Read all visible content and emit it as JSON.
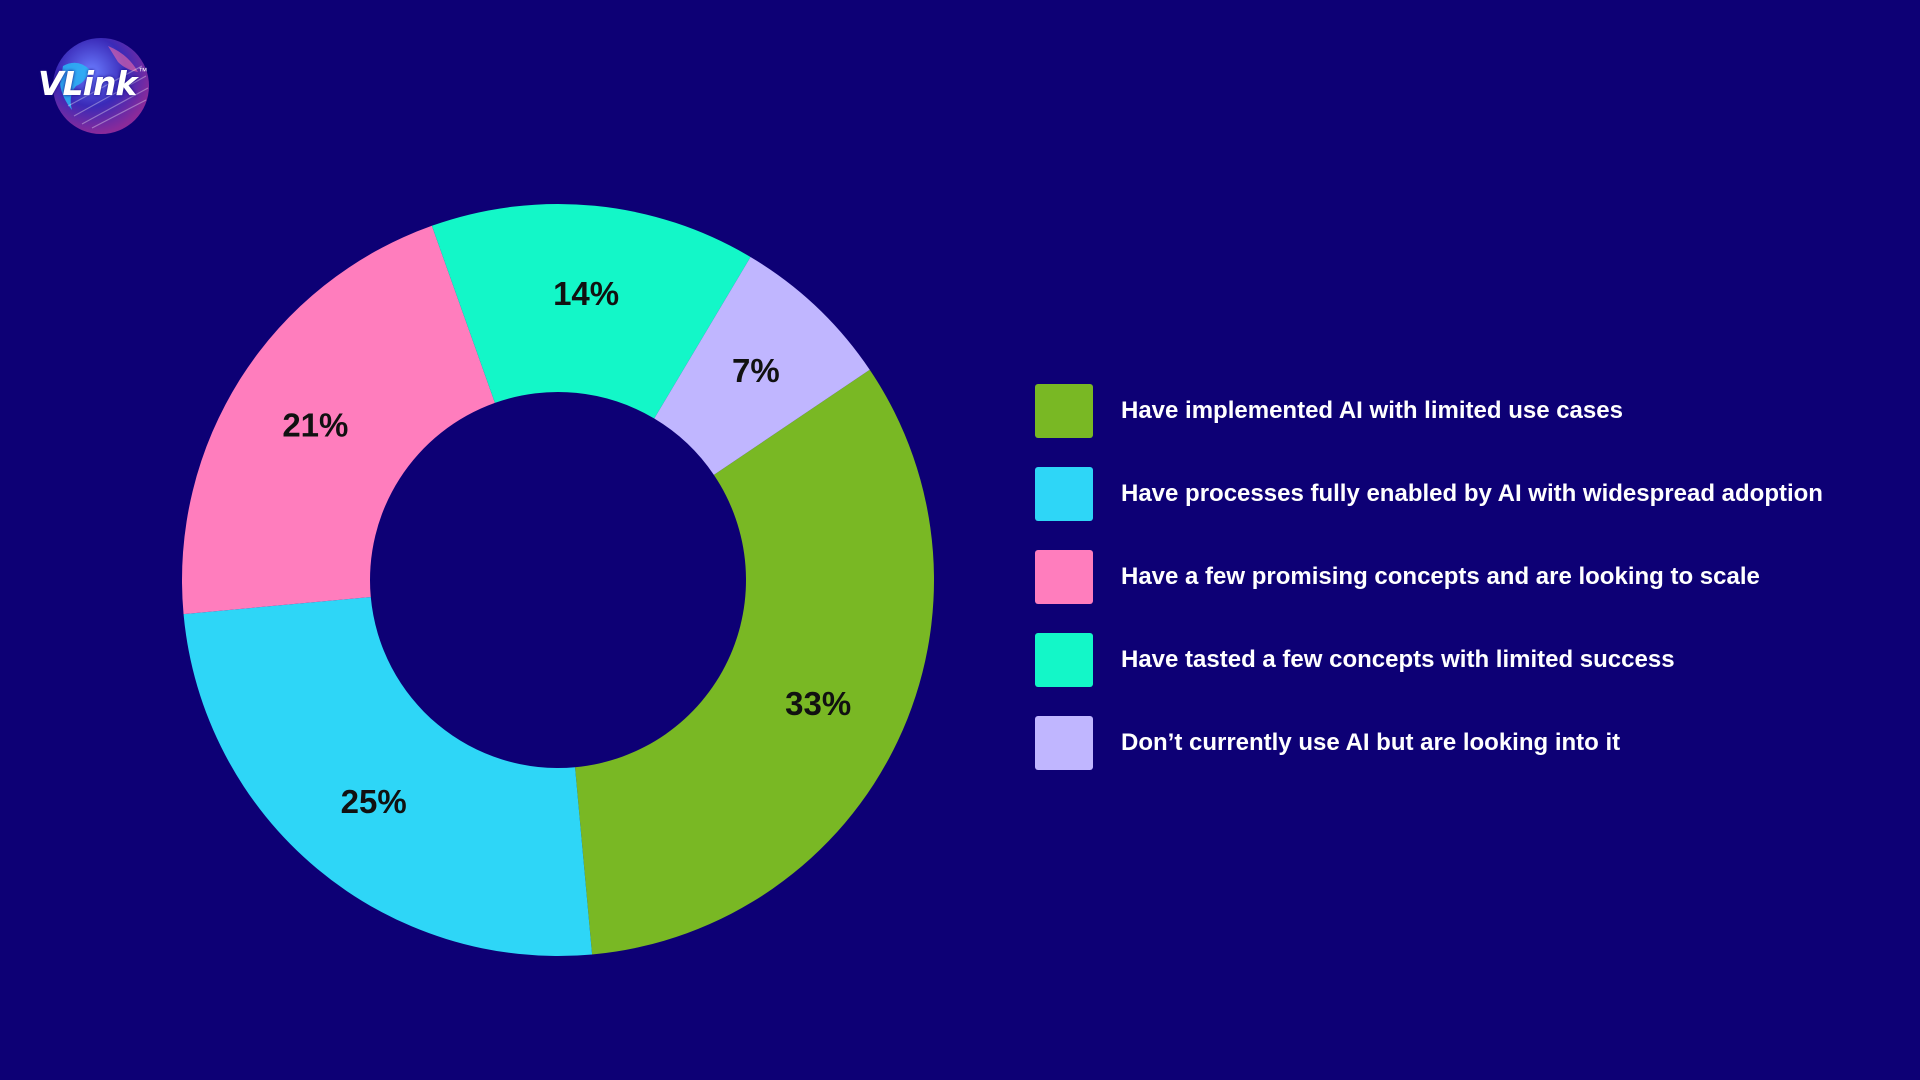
{
  "brand": {
    "logo_text": "VLink",
    "trademark": "™"
  },
  "colors": {
    "background": "#0d0075",
    "green": "#79b824",
    "blue": "#2ed6f7",
    "pink": "#ff7dbd",
    "teal": "#13f7c8",
    "lavender": "#c0b6ff"
  },
  "chart_data": {
    "type": "pie",
    "donut": true,
    "title": "",
    "legend_position": "right",
    "slices": [
      {
        "label": "Have implemented AI with limited use cases",
        "value": 33,
        "display": "33%",
        "color": "#79b824"
      },
      {
        "label": "Have processes fully enabled by AI with widespread adoption",
        "value": 25,
        "display": "25%",
        "color": "#2ed6f7"
      },
      {
        "label": "Have a few promising concepts and are looking to scale",
        "value": 21,
        "display": "21%",
        "color": "#ff7dbd"
      },
      {
        "label": "Have tasted a few concepts  with limited success",
        "value": 14,
        "display": "14%",
        "color": "#13f7c8"
      },
      {
        "label": "Don’t currently use AI but are looking into it",
        "value": 7,
        "display": "7%",
        "color": "#c0b6ff"
      }
    ]
  }
}
